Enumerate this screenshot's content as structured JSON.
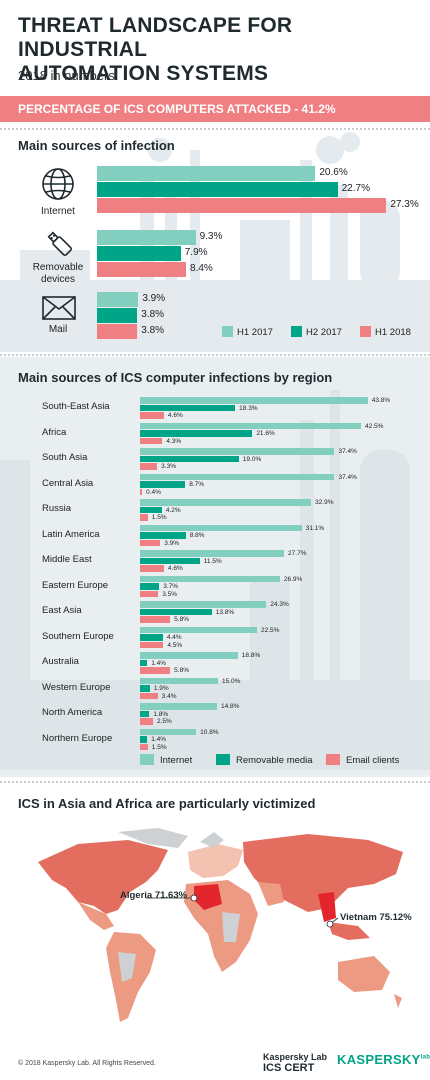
{
  "header": {
    "title_line1": "THREAT LANDSCAPE FOR INDUSTRIAL",
    "title_line2": "AUTOMATION SYSTEMS",
    "subtitle": "2018 in numbers",
    "banner": "PERCENTAGE OF ICS COMPUTERS ATTACKED - 41.2%"
  },
  "colors": {
    "h1_2017": "#82cfc0",
    "h2_2017": "#00a486",
    "h1_2018": "#ef7f81",
    "internet": "#82cfc0",
    "removable": "#00a486",
    "email": "#ef7f81"
  },
  "chart_data": [
    {
      "type": "bar",
      "title": "Main sources of infection",
      "categories": [
        "Internet",
        "Removable devices",
        "Mail"
      ],
      "series": [
        {
          "name": "H1 2017",
          "values": [
            20.6,
            9.3,
            3.9
          ],
          "labels": [
            "20.6%",
            "9.3%",
            "3.9%"
          ]
        },
        {
          "name": "H2 2017",
          "values": [
            22.7,
            7.9,
            3.8
          ],
          "labels": [
            "22.7%",
            "7.9%",
            "3.8%"
          ]
        },
        {
          "name": "H1 2018",
          "values": [
            27.3,
            8.4,
            3.8
          ],
          "labels": [
            "27.3%",
            "8.4%",
            "3.8%"
          ]
        }
      ],
      "category_labels": [
        "Internet",
        "Removable",
        "devices",
        "Mail"
      ],
      "icons": [
        "globe-icon",
        "usb-icon",
        "envelope-icon"
      ]
    },
    {
      "type": "bar",
      "title": "Main sources of ICS computer infections by region",
      "categories": [
        "South-East Asia",
        "Africa",
        "South Asia",
        "Central Asia",
        "Russia",
        "Latin America",
        "Middle East",
        "Eastern Europe",
        "East Asia",
        "Southern Europe",
        "Australia",
        "Western Europe",
        "North America",
        "Northern Europe"
      ],
      "series": [
        {
          "name": "Internet",
          "values": [
            43.8,
            42.5,
            37.4,
            37.4,
            32.9,
            31.1,
            27.7,
            26.9,
            24.3,
            22.5,
            18.8,
            15.0,
            14.8,
            10.8
          ],
          "labels": [
            "43.8%",
            "42.5%",
            "37.4%",
            "37.4%",
            "32.9%",
            "31.1%",
            "27.7%",
            "26.9%",
            "24.3%",
            "22.5%",
            "18.8%",
            "15.0%",
            "14.8%",
            "10.8%"
          ]
        },
        {
          "name": "Removable media",
          "values": [
            18.3,
            21.6,
            19.0,
            8.7,
            4.2,
            8.8,
            11.5,
            3.7,
            13.8,
            4.4,
            1.4,
            1.9,
            1.8,
            1.4
          ],
          "labels": [
            "18.3%",
            "21.6%",
            "19.0%",
            "8.7%",
            "4.2%",
            "8.8%",
            "11.5%",
            "3.7%",
            "13.8%",
            "4.4%",
            "1.4%",
            "1.9%",
            "1.8%",
            "1.4%"
          ]
        },
        {
          "name": "Email clients",
          "values": [
            4.6,
            4.3,
            3.3,
            0.4,
            1.5,
            3.9,
            4.6,
            3.5,
            5.8,
            4.5,
            5.8,
            3.4,
            2.5,
            1.5
          ],
          "labels": [
            "4.6%",
            "4.3%",
            "3.3%",
            "0.4%",
            "1.5%",
            "3.9%",
            "4.6%",
            "3.5%",
            "5.8%",
            "4.5%",
            "5.8%",
            "3.4%",
            "2.5%",
            "1.5%"
          ]
        }
      ]
    }
  ],
  "map": {
    "title": "ICS in Asia and Africa are particularly victimized",
    "callouts": [
      {
        "label": "Algeria 71.63%"
      },
      {
        "label": "Vietnam 75.12%"
      }
    ],
    "colors": {
      "high": "#e36e5f",
      "medium": "#ec9a82",
      "low": "#f3c2b0",
      "nodata": "#cdd1d3",
      "top": "#e3262c"
    }
  },
  "footer": {
    "copyright": "© 2018 Kaspersky Lab. All Rights Reserved.",
    "brand_line1": "Kaspersky Lab",
    "brand_line2": "ICS CERT",
    "logo_text": "KASPERSKY",
    "logo_suffix": "lab"
  }
}
